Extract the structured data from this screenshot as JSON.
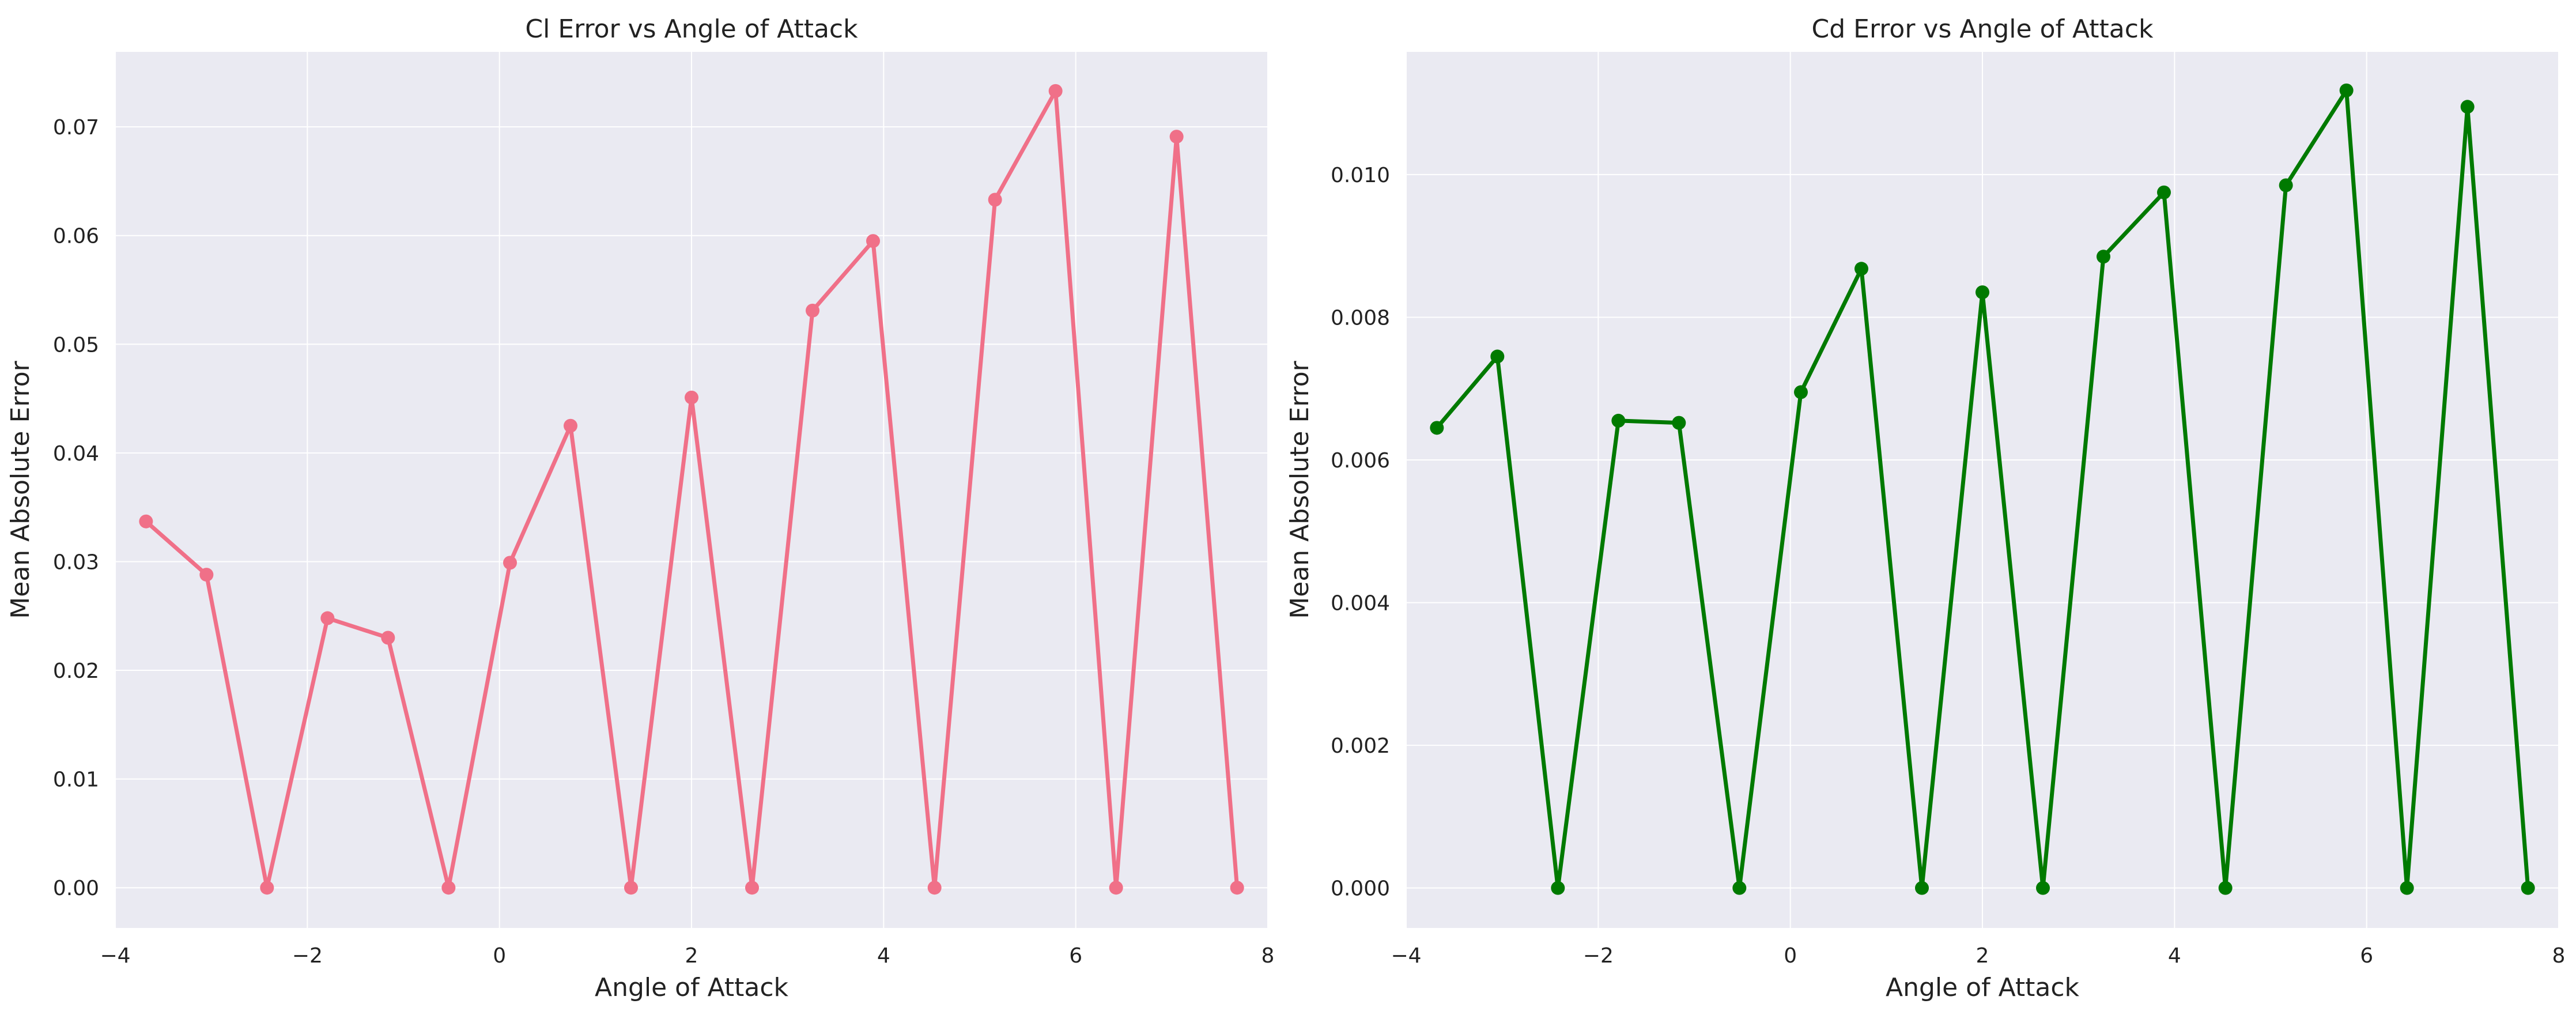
{
  "chart_data": [
    {
      "type": "line",
      "title": "Cl Error vs Angle of Attack",
      "xlabel": "Angle of Attack",
      "ylabel": "Mean Absolute Error",
      "xlim": [
        -4,
        8
      ],
      "ylim": [
        -0.0037,
        0.0769
      ],
      "xticks": [
        -4,
        -2,
        0,
        2,
        4,
        6,
        8
      ],
      "xtick_labels": [
        "−4",
        "−2",
        "0",
        "2",
        "4",
        "6",
        "8"
      ],
      "yticks": [
        0.0,
        0.01,
        0.02,
        0.03,
        0.04,
        0.05,
        0.06,
        0.07
      ],
      "ytick_labels": [
        "0.00",
        "0.01",
        "0.02",
        "0.03",
        "0.04",
        "0.05",
        "0.06",
        "0.07"
      ],
      "grid": true,
      "color": "#f07088",
      "x": [
        -3.68,
        -3.05,
        -2.42,
        -1.79,
        -1.16,
        -0.53,
        0.11,
        0.74,
        1.37,
        2.0,
        2.63,
        3.26,
        3.89,
        4.53,
        5.16,
        5.79,
        6.42,
        7.05,
        7.68
      ],
      "y": [
        0.0337,
        0.0288,
        0.0,
        0.0248,
        0.023,
        0.0,
        0.0299,
        0.0425,
        0.0,
        0.0451,
        0.0,
        0.0531,
        0.0595,
        0.0,
        0.0633,
        0.0733,
        0.0,
        0.0691,
        0.0
      ]
    },
    {
      "type": "line",
      "title": "Cd Error vs Angle of Attack",
      "xlabel": "Angle of Attack",
      "ylabel": "Mean Absolute Error",
      "xlim": [
        -4,
        8
      ],
      "ylim": [
        -0.00056,
        0.01172
      ],
      "xticks": [
        -4,
        -2,
        0,
        2,
        4,
        6,
        8
      ],
      "xtick_labels": [
        "−4",
        "−2",
        "0",
        "2",
        "4",
        "6",
        "8"
      ],
      "yticks": [
        0.0,
        0.002,
        0.004,
        0.006,
        0.008,
        0.01
      ],
      "ytick_labels": [
        "0.000",
        "0.002",
        "0.004",
        "0.006",
        "0.008",
        "0.010"
      ],
      "grid": true,
      "color": "#007a00",
      "x": [
        -3.68,
        -3.05,
        -2.42,
        -1.79,
        -1.16,
        -0.53,
        0.11,
        0.74,
        1.37,
        2.0,
        2.63,
        3.26,
        3.89,
        4.53,
        5.16,
        5.79,
        6.42,
        7.05,
        7.68
      ],
      "y": [
        0.00645,
        0.00745,
        0.0,
        0.00655,
        0.00652,
        0.0,
        0.00695,
        0.00868,
        0.0,
        0.00835,
        0.0,
        0.00885,
        0.00975,
        0.0,
        0.00985,
        0.01118,
        0.0,
        0.01095,
        0.0
      ]
    }
  ]
}
